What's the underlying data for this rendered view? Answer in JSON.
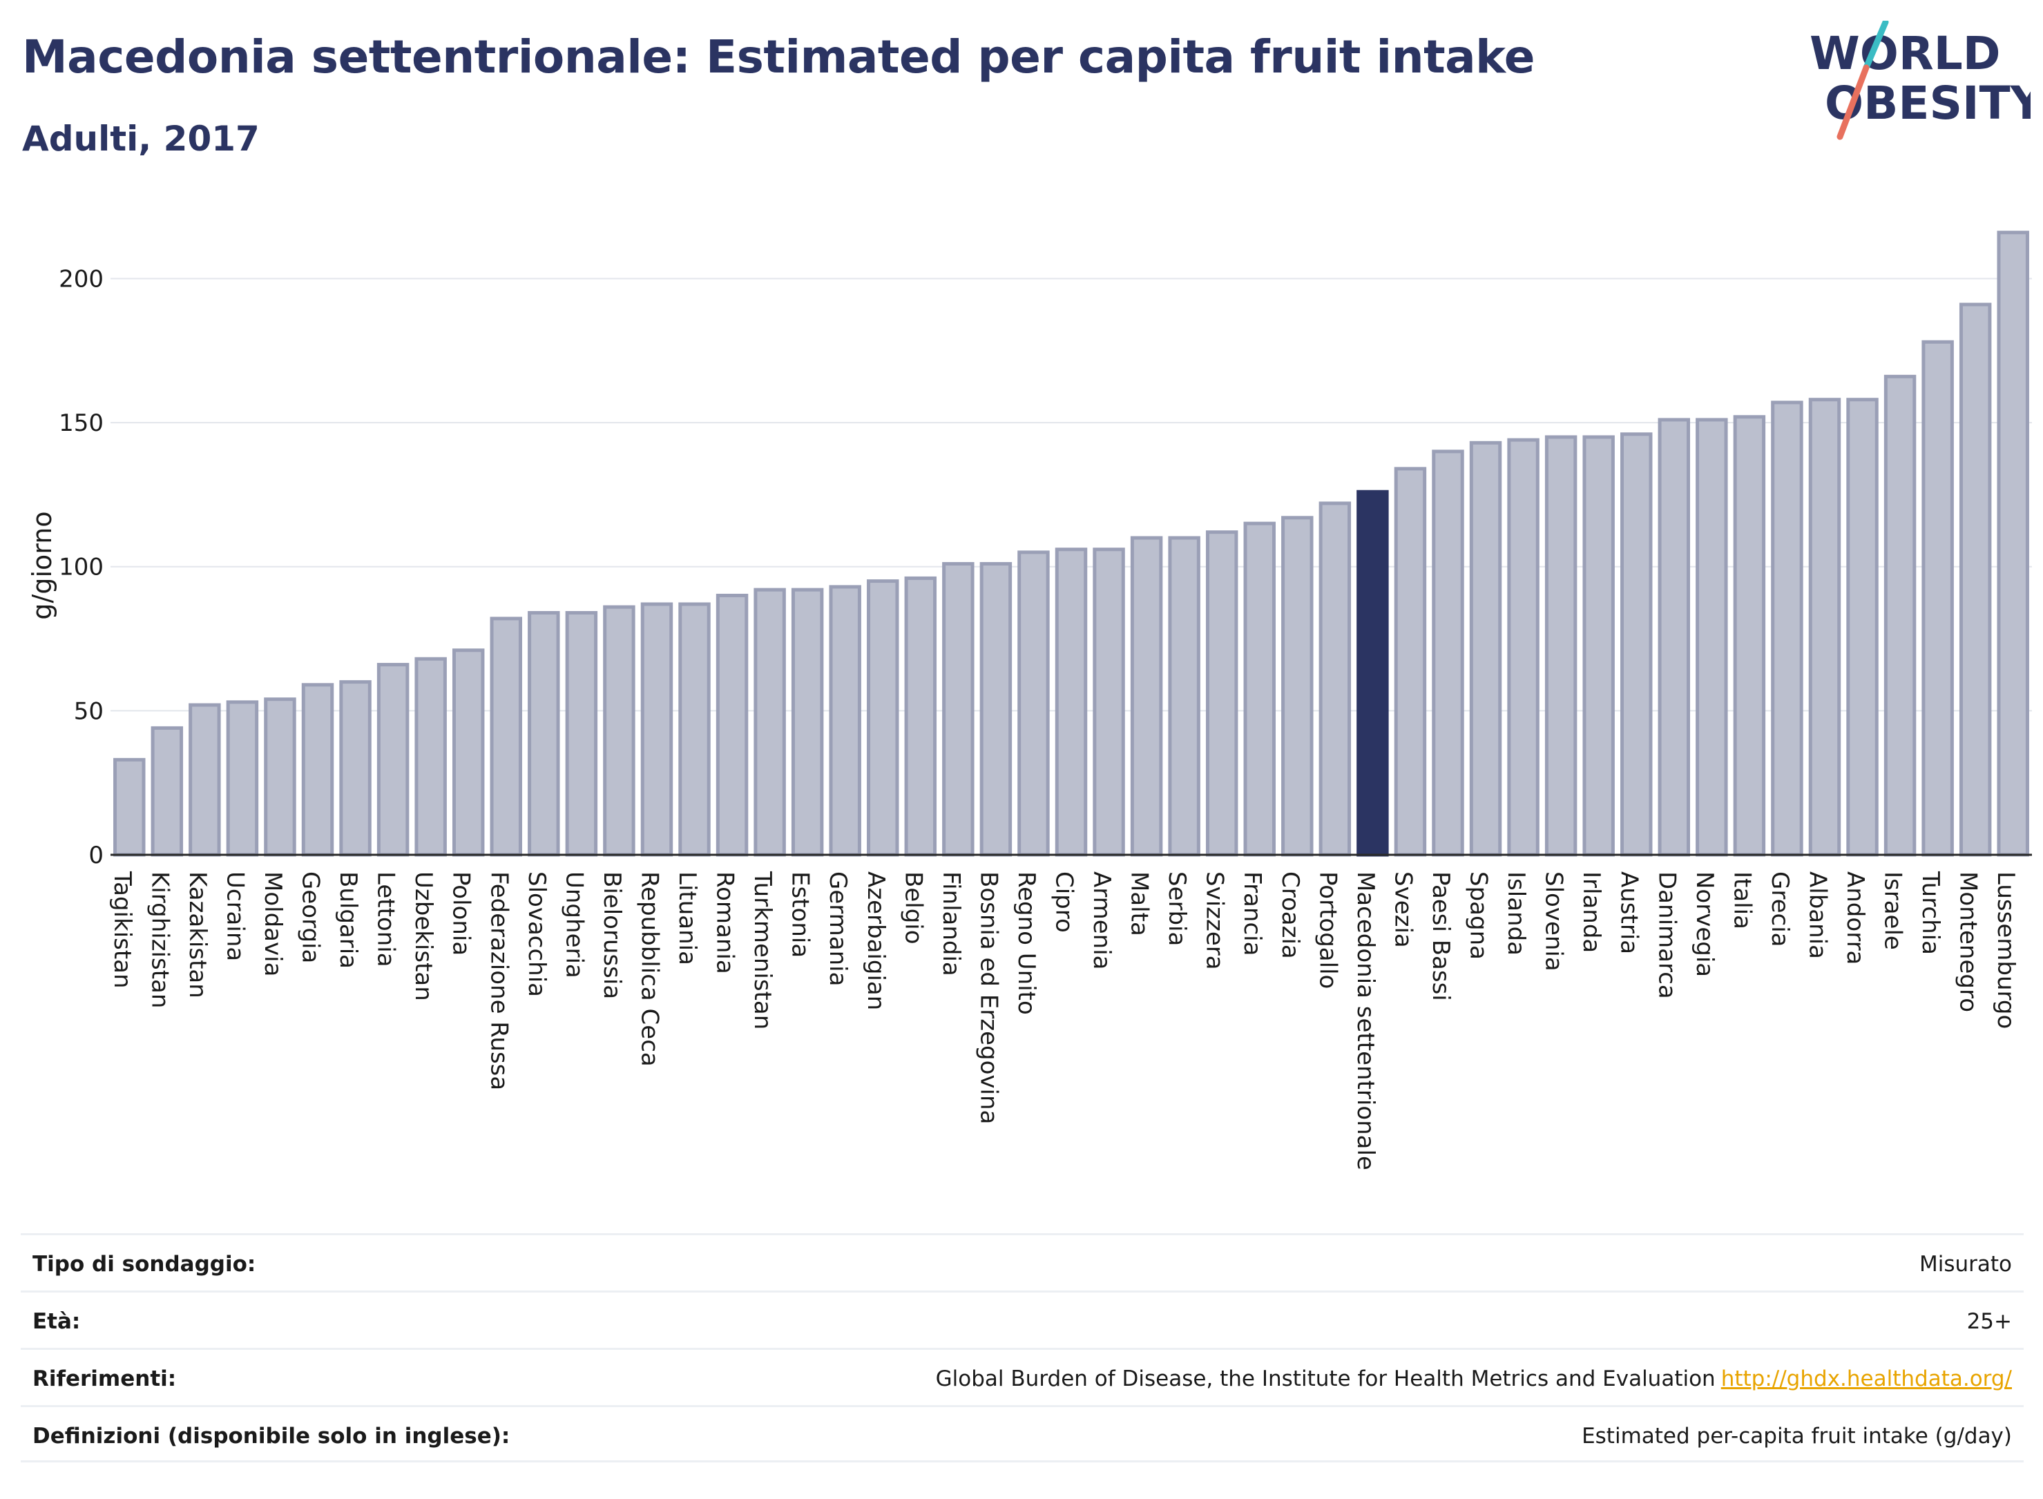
{
  "header": {
    "title": "Macedonia settentrionale: Estimated per capita fruit intake",
    "subtitle": "Adulti, 2017"
  },
  "logo": {
    "line1": "WORLD",
    "line2": "OBESITY",
    "colors": {
      "text": "#2b3462",
      "slash_teal": "#3bbcc4",
      "slash_coral": "#e8715e"
    }
  },
  "colors": {
    "bar_default": "#bbbfce",
    "bar_default_stroke": "#9a9fb6",
    "bar_highlight": "#2b3462",
    "grid": "#e3e6ec",
    "axis": "#2b2b2b"
  },
  "chart_data": {
    "type": "bar",
    "ylabel": "g/giorno",
    "ylim": [
      0,
      220
    ],
    "yticks": [
      0,
      50,
      100,
      150,
      200
    ],
    "grid": true,
    "highlight": "Macedonia settentrionale",
    "categories": [
      "Tagikistan",
      "Kirghizistan",
      "Kazakistan",
      "Ucraina",
      "Moldavia",
      "Georgia",
      "Bulgaria",
      "Lettonia",
      "Uzbekistan",
      "Polonia",
      "Federazione Russa",
      "Slovacchia",
      "Ungheria",
      "Bielorussia",
      "Repubblica Ceca",
      "Lituania",
      "Romania",
      "Turkmenistan",
      "Estonia",
      "Germania",
      "Azerbaigian",
      "Belgio",
      "Finlandia",
      "Bosnia ed Erzegovina",
      "Regno Unito",
      "Cipro",
      "Armenia",
      "Malta",
      "Serbia",
      "Svizzera",
      "Francia",
      "Croazia",
      "Portogallo",
      "Macedonia settentrionale",
      "Svezia",
      "Paesi Bassi",
      "Spagna",
      "Islanda",
      "Slovenia",
      "Irlanda",
      "Austria",
      "Danimarca",
      "Norvegia",
      "Italia",
      "Grecia",
      "Albania",
      "Andorra",
      "Israele",
      "Turchia",
      "Montenegro",
      "Lussemburgo"
    ],
    "values": [
      33,
      44,
      52,
      53,
      54,
      59,
      60,
      66,
      68,
      71,
      82,
      84,
      84,
      86,
      87,
      87,
      90,
      92,
      92,
      93,
      95,
      96,
      101,
      101,
      105,
      106,
      106,
      110,
      110,
      112,
      115,
      117,
      122,
      126,
      134,
      140,
      143,
      144,
      145,
      145,
      146,
      151,
      151,
      152,
      157,
      158,
      158,
      166,
      178,
      191,
      216
    ]
  },
  "info": [
    {
      "label": "Tipo di sondaggio:",
      "value": "Misurato"
    },
    {
      "label": "Età:",
      "value": "25+"
    },
    {
      "label": "Riferimenti:",
      "value": "Global Burden of Disease, the Institute for Health Metrics and Evaluation",
      "link": "http://ghdx.healthdata.org/"
    },
    {
      "label": "Definizioni (disponibile solo in inglese):",
      "value": "Estimated per-capita fruit intake (g/day)"
    }
  ]
}
